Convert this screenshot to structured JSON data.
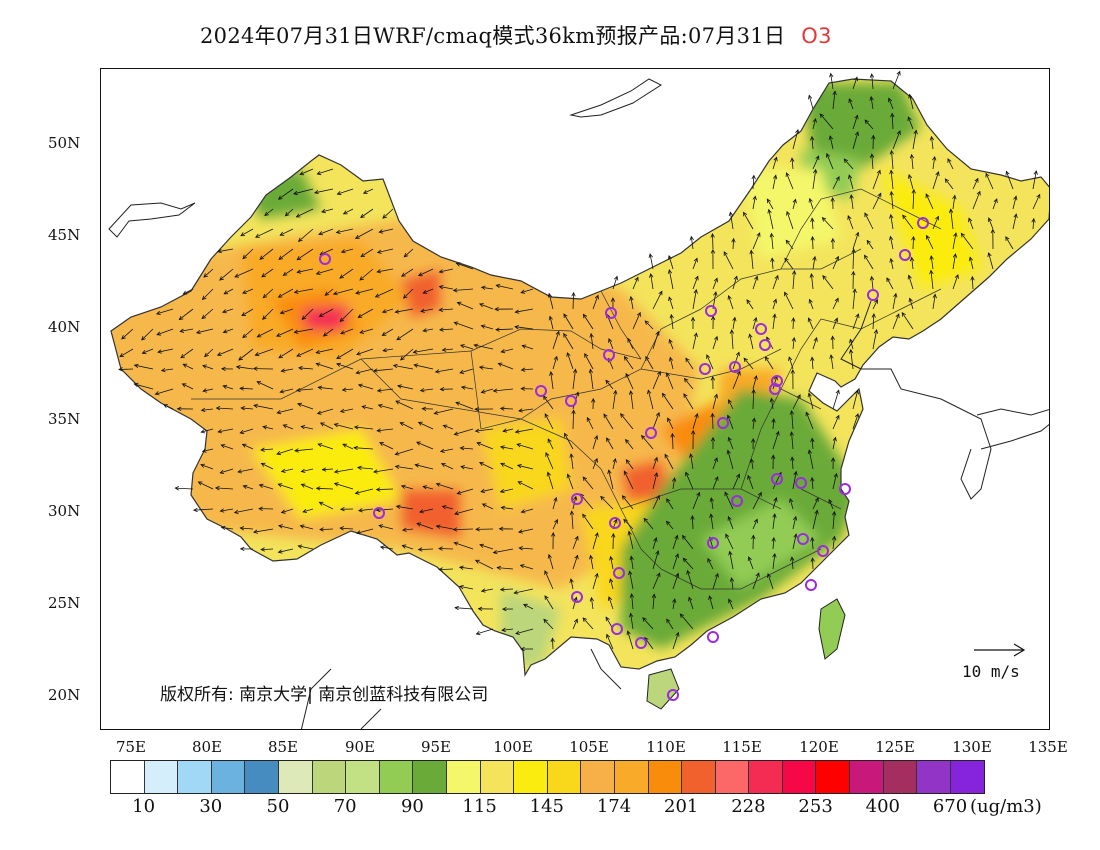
{
  "title": {
    "main": "2024年07月31日WRF/cmaq模式36km预报产品:07月31日",
    "species": "O3"
  },
  "lat_labels": [
    "50N",
    "45N",
    "40N",
    "35N",
    "30N",
    "25N",
    "20N"
  ],
  "lon_labels": [
    "75E",
    "80E",
    "85E",
    "90E",
    "95E",
    "100E",
    "105E",
    "110E",
    "115E",
    "120E",
    "125E",
    "130E",
    "135E"
  ],
  "copyright": "版权所有: 南京大学| 南京创蓝科技有限公司",
  "wind_reference": {
    "label": "10 m/s",
    "speed_ms": 10
  },
  "legend": {
    "colors": [
      "#ffffff",
      "#d4eefc",
      "#a0d8f5",
      "#6cb2e0",
      "#468cc0",
      "#dde9b8",
      "#bcd67c",
      "#c2e084",
      "#92cc54",
      "#6aaa38",
      "#f4f76a",
      "#f3e45c",
      "#fbec10",
      "#f9d71a",
      "#f7b048",
      "#f9aa28",
      "#fa8c0c",
      "#f1612e",
      "#fc6868",
      "#f42c54",
      "#f60848",
      "#fe0000",
      "#c8187a",
      "#a42e5e",
      "#9234c6",
      "#8624dc"
    ],
    "tick_labels": [
      "10",
      "30",
      "50",
      "70",
      "90",
      "115",
      "145",
      "174",
      "201",
      "228",
      "253",
      "400",
      "670"
    ],
    "unit": "(ug/m3)"
  }
}
